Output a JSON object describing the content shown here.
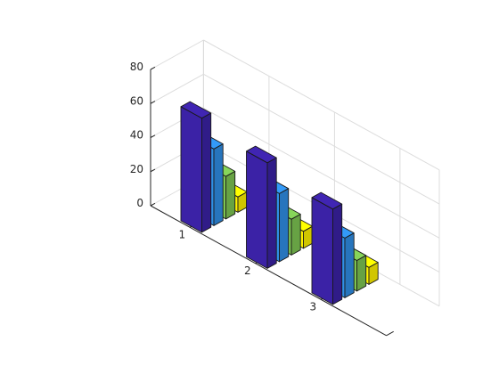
{
  "chart_data": {
    "type": "bar",
    "variant": "3d-grouped",
    "title": "",
    "xlabel": "",
    "ylabel": "",
    "zlabel": "",
    "categories": [
      "1",
      "2",
      "3"
    ],
    "zlim": [
      0,
      80
    ],
    "z_ticks": [
      "0",
      "20",
      "40",
      "60",
      "80"
    ],
    "grid": true,
    "legend": "none",
    "series": [
      {
        "values": [
          67,
          62,
          56
        ],
        "color": "#3B22A6"
      },
      {
        "values": [
          45,
          40,
          35
        ],
        "color": "#2F8FE6"
      },
      {
        "values": [
          25,
          21,
          18
        ],
        "color": "#7DC653"
      },
      {
        "values": [
          9,
          10,
          10
        ],
        "color": "#FFF200"
      }
    ]
  }
}
